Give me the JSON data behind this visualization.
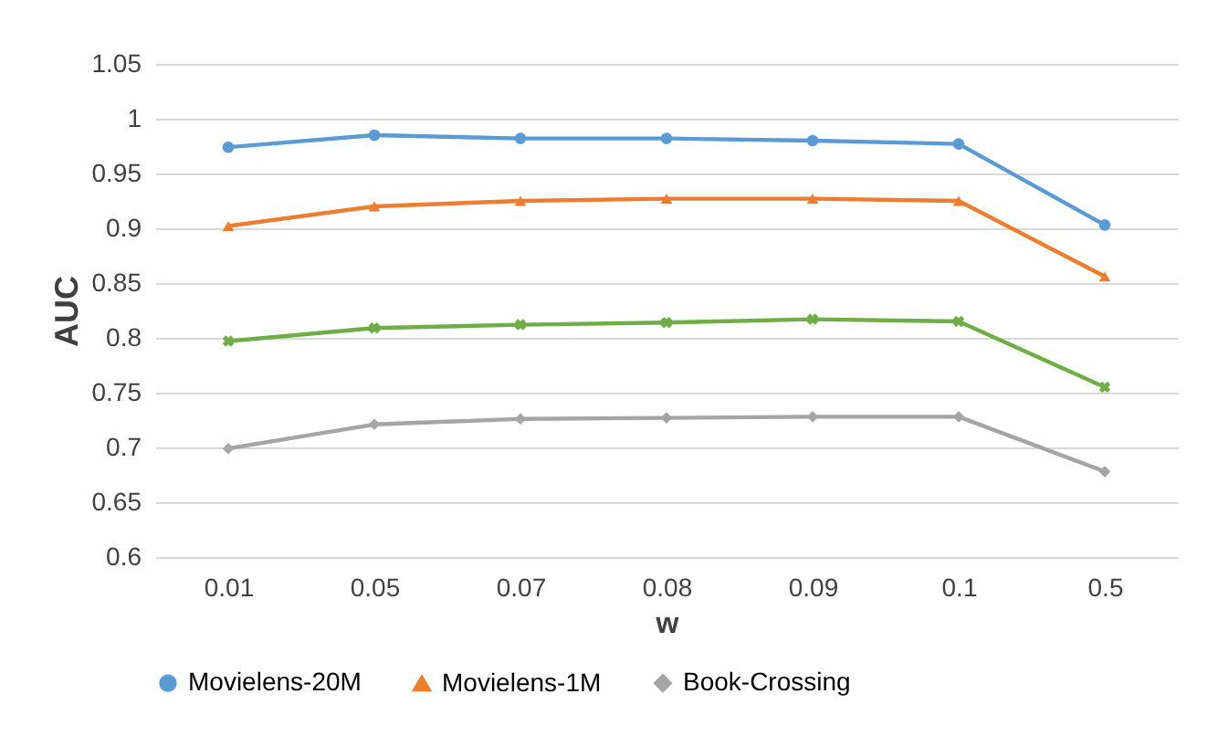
{
  "chart_data": {
    "type": "line",
    "xlabel": "w",
    "ylabel": "AUC",
    "categories": [
      "0.01",
      "0.05",
      "0.07",
      "0.08",
      "0.09",
      "0.1",
      "0.5"
    ],
    "ylim": [
      0.6,
      1.05
    ],
    "yticks": [
      0.6,
      0.65,
      0.7,
      0.75,
      0.8,
      0.85,
      0.9,
      0.95,
      1,
      1.05
    ],
    "grid": "y",
    "legend": "bottom",
    "series": [
      {
        "name": "Movielens-20M",
        "color": "#5b9bd5",
        "marker": "circle",
        "values": [
          0.974,
          0.985,
          0.982,
          0.982,
          0.98,
          0.977,
          0.903
        ]
      },
      {
        "name": "Movielens-1M",
        "color": "#ed7d31",
        "marker": "triangle",
        "values": [
          0.902,
          0.92,
          0.925,
          0.927,
          0.927,
          0.925,
          0.856
        ]
      },
      {
        "name": "Book-Crossing",
        "color": "#a5a5a5",
        "marker": "diamond",
        "values": [
          0.699,
          0.721,
          0.726,
          0.727,
          0.728,
          0.728,
          0.678
        ]
      },
      {
        "color": "#70ad47",
        "marker": "cross",
        "values": [
          0.797,
          0.809,
          0.812,
          0.814,
          0.817,
          0.815,
          0.755
        ]
      }
    ]
  }
}
